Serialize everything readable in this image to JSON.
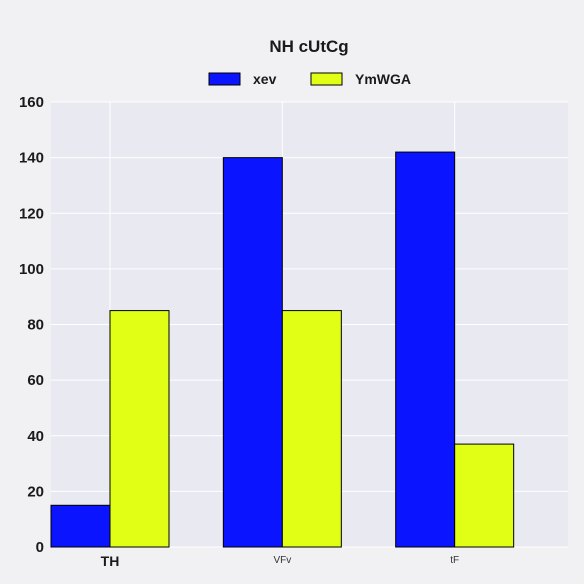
{
  "chart_data": {
    "type": "bar",
    "title": "NH cUtCg",
    "categories": [
      "TH",
      "VFv",
      "tF"
    ],
    "series": [
      {
        "name": "xev",
        "values": [
          15,
          140,
          142
        ],
        "color": "#0a14ff"
      },
      {
        "name": "YmWGA",
        "values": [
          85,
          85,
          37
        ],
        "color": "#e0ff14"
      }
    ],
    "ylim": [
      0,
      160
    ],
    "yticks": [
      0,
      20,
      40,
      60,
      80,
      100,
      120,
      140,
      160
    ],
    "grid": true,
    "legend_position": "top-center",
    "plot_background": "#e9e9f1",
    "figure_background": "#f1f1f4"
  }
}
